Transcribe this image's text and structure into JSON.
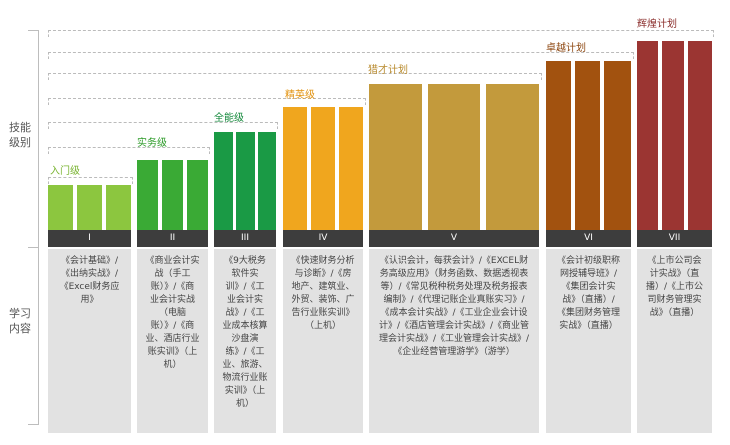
{
  "axis": {
    "skills_label": "技能\n级别",
    "study_label": "学习\n内容"
  },
  "levels": [
    {
      "name": "入门级",
      "numeral": "I",
      "color": "#8cc63f",
      "label_color": "#7ab432",
      "content": "《会计基础》/\n《出纳实战》/\n《Excel财务应\n用》"
    },
    {
      "name": "实务级",
      "numeral": "II",
      "color": "#3aaa35",
      "label_color": "#2e9b2a",
      "content": "《商业会计实\n战（手工\n账）》/《商\n业会计实战\n（电脑\n账）》/《商\n业、酒店行业\n账实训》（上\n机）"
    },
    {
      "name": "全能级",
      "numeral": "III",
      "color": "#1a9a45",
      "label_color": "#168a3d",
      "content": "《9大税务\n软件实\n训》/《工\n业会计实\n战》/《工\n业成本核算\n沙盘演\n练》/《工\n业、旅游、\n物流行业账\n实训》（上\n机）"
    },
    {
      "name": "精英级",
      "numeral": "IV",
      "color": "#f0a61e",
      "label_color": "#e39412",
      "content": "《快速财务分析\n与诊断》/《房\n地产、建筑业、\n外贸、装饰、广\n告行业账实训》\n（上机）"
    },
    {
      "name": "猎才计划",
      "numeral": "V",
      "color": "#c39a3c",
      "label_color": "#b88a2c",
      "content": "《认识会计，每获会计》/《EXCEL财\n务高级应用》（财务函数、数据透视表\n等）/《常见税种税务处理及税务报表\n编制》/《代理记账企业真账实习》/\n《成本会计实战》/《工业企业会计设\n计》/《酒店管理会计实战》/《商业管\n理会计实战》/《工业管理会计实战》/\n《企业经营管理游学》（游学）"
    },
    {
      "name": "卓越计划",
      "numeral": "VI",
      "color": "#a2520f",
      "label_color": "#8d4710",
      "content": "《会计初级职称\n网授辅导班》/\n《集团会计实\n战》（直播）/\n《集团财务管理\n实战》（直播）"
    },
    {
      "name": "辉煌计划",
      "numeral": "VII",
      "color": "#9b3532",
      "label_color": "#8a2c2a",
      "content": "《上市公司会\n计实战》（直\n播）/《上市公\n司财务管理实\n战》（直播）"
    }
  ]
}
